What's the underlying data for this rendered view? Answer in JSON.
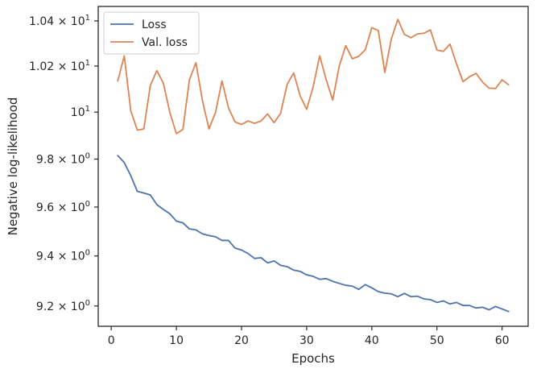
{
  "chart_data": {
    "type": "line",
    "xlabel": "Epochs",
    "ylabel": "Negative log-likelihood",
    "xlim": [
      -2,
      64
    ],
    "ylim": [
      9.12,
      10.465
    ],
    "y_scale": "log",
    "grid": false,
    "legend_position": "top-left",
    "x_ticks": [
      {
        "value": 0,
        "label": "0"
      },
      {
        "value": 10,
        "label": "10"
      },
      {
        "value": 20,
        "label": "20"
      },
      {
        "value": 30,
        "label": "30"
      },
      {
        "value": 40,
        "label": "40"
      },
      {
        "value": 50,
        "label": "50"
      },
      {
        "value": 60,
        "label": "60"
      }
    ],
    "y_ticks": [
      {
        "value": 9.2,
        "base": "9.2 × 10",
        "exp": "0"
      },
      {
        "value": 9.4,
        "base": "9.4 × 10",
        "exp": "0"
      },
      {
        "value": 9.6,
        "base": "9.6 × 10",
        "exp": "0"
      },
      {
        "value": 9.8,
        "base": "9.8 × 10",
        "exp": "0"
      },
      {
        "value": 10.0,
        "base": "10",
        "exp": "1"
      },
      {
        "value": 10.2,
        "base": "1.02 × 10",
        "exp": "1"
      },
      {
        "value": 10.4,
        "base": "1.04 × 10",
        "exp": "1"
      }
    ],
    "x": [
      1,
      2,
      3,
      4,
      5,
      6,
      7,
      8,
      9,
      10,
      11,
      12,
      13,
      14,
      15,
      16,
      17,
      18,
      19,
      20,
      21,
      22,
      23,
      24,
      25,
      26,
      27,
      28,
      29,
      30,
      31,
      32,
      33,
      34,
      35,
      36,
      37,
      38,
      39,
      40,
      41,
      42,
      43,
      44,
      45,
      46,
      47,
      48,
      49,
      50,
      51,
      52,
      53,
      54,
      55,
      56,
      57,
      58,
      59,
      60,
      61
    ],
    "series": [
      {
        "name": "Loss",
        "color": "#4c72b0",
        "values": [
          9.815,
          9.785,
          9.73,
          9.665,
          9.658,
          9.65,
          9.61,
          9.59,
          9.572,
          9.542,
          9.535,
          9.51,
          9.506,
          9.49,
          9.483,
          9.478,
          9.463,
          9.463,
          9.432,
          9.424,
          9.41,
          9.39,
          9.393,
          9.372,
          9.38,
          9.362,
          9.357,
          9.343,
          9.338,
          9.324,
          9.318,
          9.306,
          9.309,
          9.298,
          9.29,
          9.282,
          9.279,
          9.266,
          9.285,
          9.272,
          9.257,
          9.251,
          9.248,
          9.237,
          9.25,
          9.237,
          9.239,
          9.228,
          9.225,
          9.214,
          9.22,
          9.208,
          9.214,
          9.202,
          9.202,
          9.192,
          9.195,
          9.185,
          9.198,
          9.188,
          9.178
        ]
      },
      {
        "name": "Val. loss",
        "color": "#dd8452",
        "values": [
          10.135,
          10.245,
          10.005,
          9.923,
          9.928,
          10.115,
          10.18,
          10.125,
          9.998,
          9.908,
          9.926,
          10.14,
          10.215,
          10.05,
          9.928,
          9.998,
          10.135,
          10.018,
          9.958,
          9.947,
          9.962,
          9.952,
          9.962,
          9.992,
          9.955,
          9.995,
          10.12,
          10.17,
          10.07,
          10.012,
          10.11,
          10.245,
          10.14,
          10.052,
          10.2,
          10.29,
          10.232,
          10.243,
          10.272,
          10.37,
          10.357,
          10.172,
          10.32,
          10.407,
          10.34,
          10.325,
          10.342,
          10.345,
          10.36,
          10.27,
          10.265,
          10.297,
          10.21,
          10.132,
          10.153,
          10.168,
          10.13,
          10.104,
          10.102,
          10.14,
          10.118
        ]
      }
    ]
  }
}
